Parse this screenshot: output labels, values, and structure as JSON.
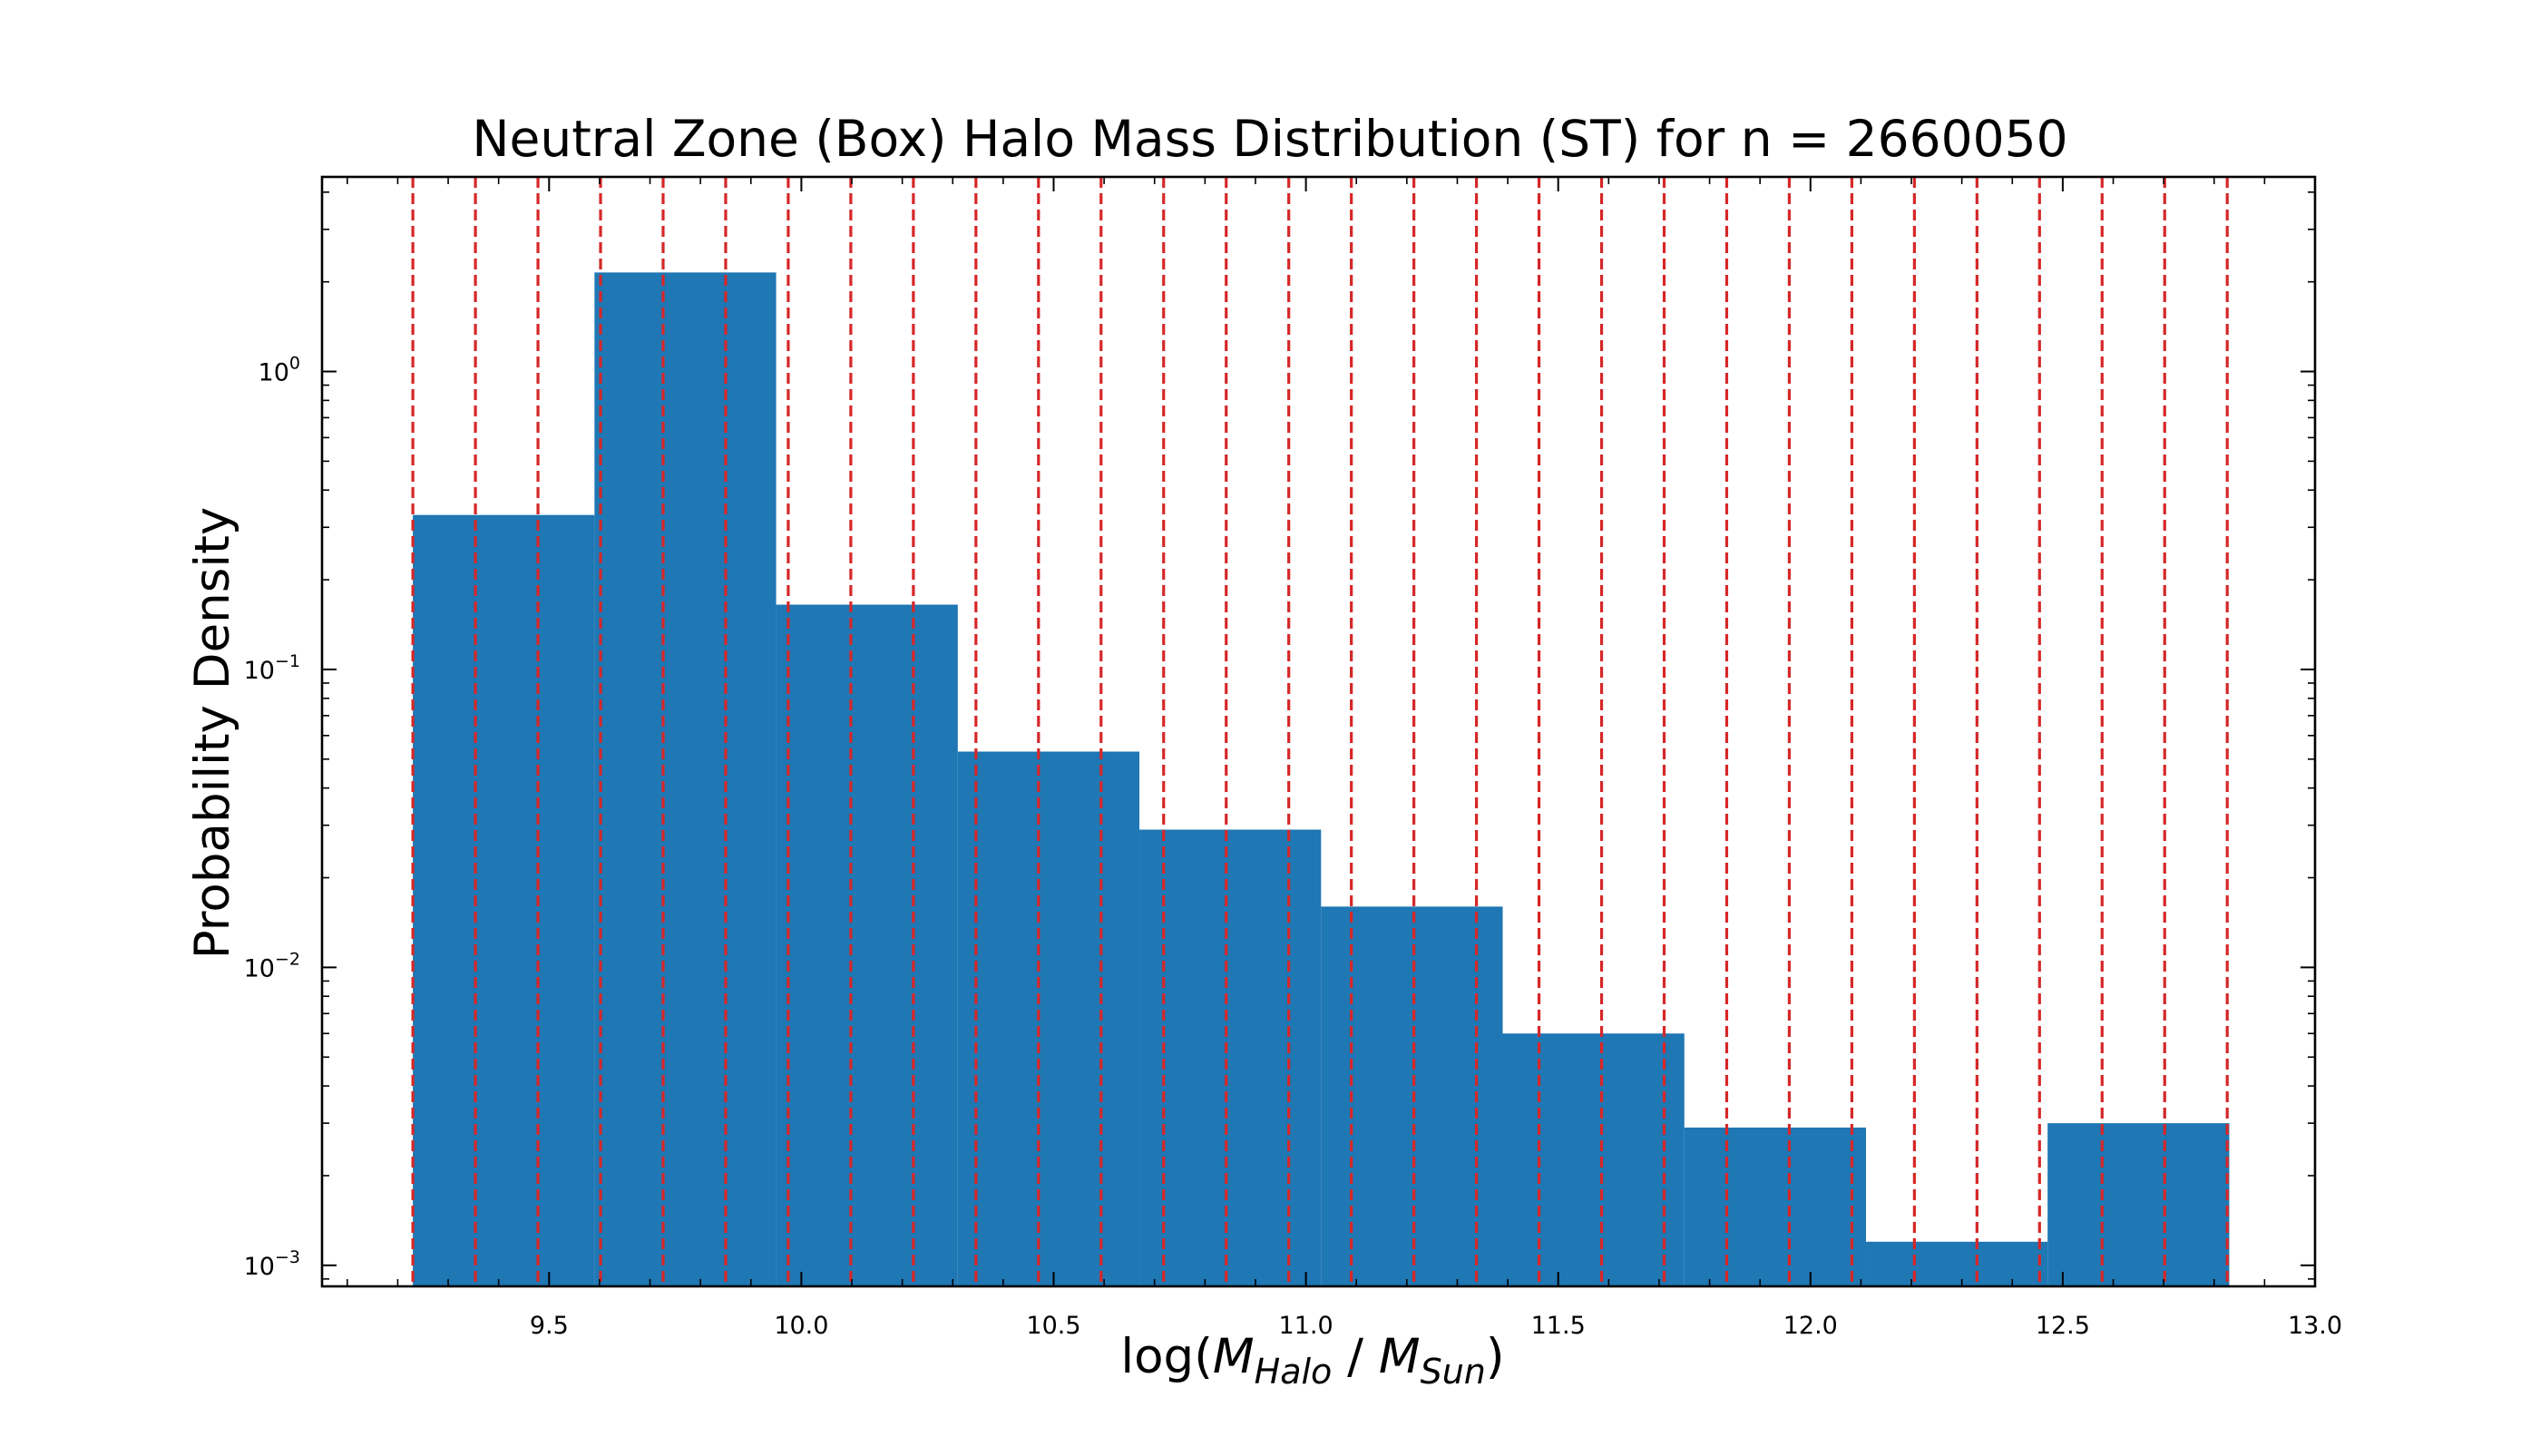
{
  "chart_data": {
    "type": "bar",
    "title": "Neutral Zone (Box) Halo Mass Distribution (ST) for n = 2660050",
    "xlabel_parts": [
      "log(",
      "M",
      "Halo",
      " / ",
      "M",
      "Sun",
      ")"
    ],
    "ylabel": "Probability Density",
    "x_scale": "linear",
    "y_scale": "log",
    "xlim": [
      9.05,
      13.0
    ],
    "ylim": [
      0.00085,
      4.5
    ],
    "x_ticks": [
      9.5,
      10.0,
      10.5,
      11.0,
      11.5,
      12.0,
      12.5,
      13.0
    ],
    "x_tick_labels": [
      "9.5",
      "10.0",
      "10.5",
      "11.0",
      "11.5",
      "12.0",
      "12.5",
      "13.0"
    ],
    "y_major_ticks": [
      0.001,
      0.01,
      0.1,
      1
    ],
    "y_tick_labels": [
      {
        "base": "10",
        "exp": "−3"
      },
      {
        "base": "10",
        "exp": "−2"
      },
      {
        "base": "10",
        "exp": "−1"
      },
      {
        "base": "10",
        "exp": "0"
      }
    ],
    "bins": [
      {
        "x0": 9.23,
        "x1": 9.59,
        "value": 0.33
      },
      {
        "x0": 9.59,
        "x1": 9.95,
        "value": 2.15
      },
      {
        "x0": 9.95,
        "x1": 10.31,
        "value": 0.165
      },
      {
        "x0": 10.31,
        "x1": 10.67,
        "value": 0.053
      },
      {
        "x0": 10.67,
        "x1": 11.03,
        "value": 0.029
      },
      {
        "x0": 11.03,
        "x1": 11.39,
        "value": 0.016
      },
      {
        "x0": 11.39,
        "x1": 11.75,
        "value": 0.006
      },
      {
        "x0": 11.75,
        "x1": 12.11,
        "value": 0.0029
      },
      {
        "x0": 12.11,
        "x1": 12.47,
        "value": 0.0012
      },
      {
        "x0": 12.47,
        "x1": 12.83,
        "value": 0.003
      }
    ],
    "vlines": [
      9.23,
      9.354,
      9.478,
      9.602,
      9.726,
      9.85,
      9.974,
      10.098,
      10.222,
      10.346,
      10.47,
      10.594,
      10.718,
      10.842,
      10.966,
      11.09,
      11.214,
      11.338,
      11.462,
      11.586,
      11.71,
      11.834,
      11.958,
      12.082,
      12.206,
      12.33,
      12.454,
      12.578,
      12.702,
      12.826
    ],
    "colors": {
      "bar": "#1f77b4",
      "vline": "#d62728",
      "axis": "#000000"
    },
    "grid": false,
    "legend": "none"
  }
}
